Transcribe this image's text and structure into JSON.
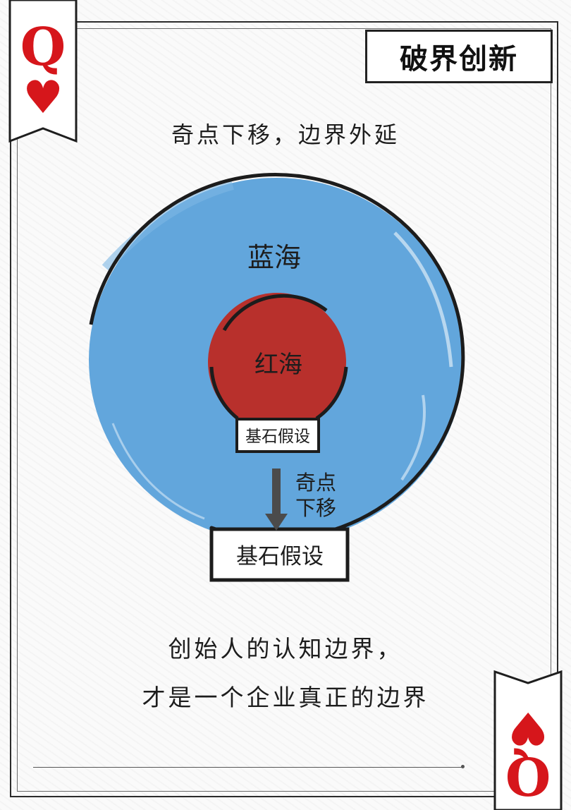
{
  "card": {
    "rank": "Q",
    "suit": "heart-icon",
    "suit_glyph": "♥",
    "rank_color": "#d6161b"
  },
  "header": {
    "title": "破界创新"
  },
  "subtitle": "奇点下移，边界外延",
  "diagram": {
    "outer_label": "蓝海",
    "inner_label": "红海",
    "inner_base_label": "基石假设",
    "arrow_label_line1": "奇点",
    "arrow_label_line2": "下移",
    "outer_base_label": "基石假设",
    "colors": {
      "blue_ocean": "#62a6dc",
      "red_ocean": "#b8302c",
      "outline": "#1c1c1c"
    }
  },
  "footer": {
    "line1": "创始人的认知边界，",
    "line2": "才是一个企业真正的边界"
  }
}
